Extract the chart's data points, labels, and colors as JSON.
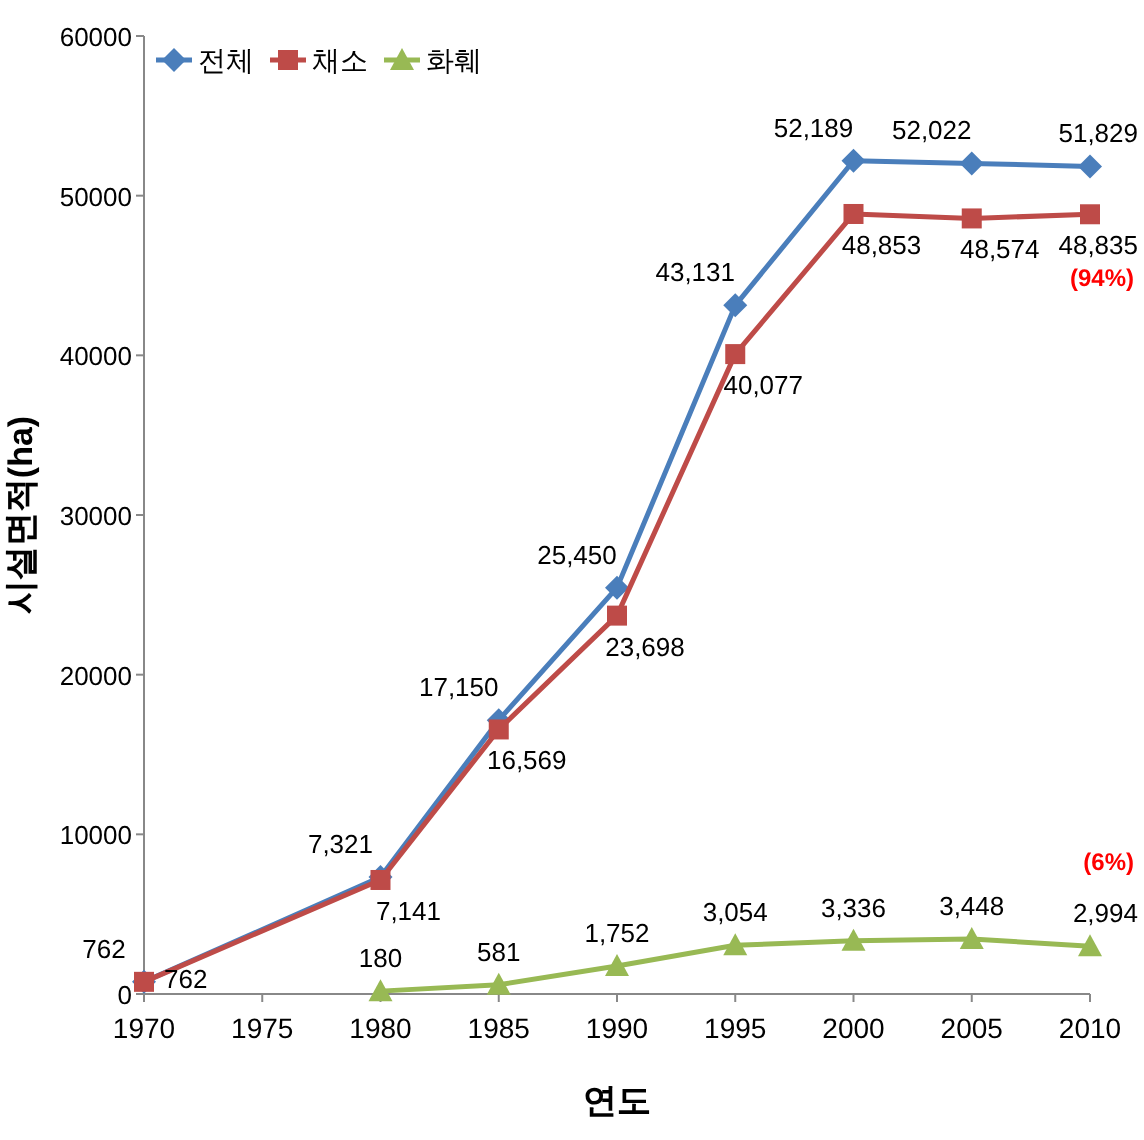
{
  "chart_data": {
    "type": "line",
    "xlabel": "연도",
    "ylabel": "시설면적(ha)",
    "x": [
      1970,
      1980,
      1985,
      1990,
      1995,
      2000,
      2005,
      2010
    ],
    "xlim": [
      1970,
      2010
    ],
    "xticks": [
      1970,
      1975,
      1980,
      1985,
      1990,
      1995,
      2000,
      2005,
      2010
    ],
    "ylim": [
      0,
      60000
    ],
    "yticks": [
      0,
      10000,
      20000,
      30000,
      40000,
      50000,
      60000
    ],
    "grid": false,
    "legend": "top left",
    "series": [
      {
        "name": "전체",
        "color": "#4a7ebb",
        "marker": "diamond",
        "values": [
          762,
          7321,
          17150,
          25450,
          43131,
          52189,
          52022,
          51829
        ],
        "value_labels": [
          "762",
          "7,321",
          "17,150",
          "25,450",
          "43,131",
          "52,189",
          "52,022",
          "51,829"
        ]
      },
      {
        "name": "채소",
        "color": "#be4b48",
        "marker": "square",
        "values": [
          762,
          7141,
          16569,
          23698,
          40077,
          48853,
          48574,
          48835
        ],
        "value_labels": [
          "762",
          "7,141",
          "16,569",
          "23,698",
          "40,077",
          "48,853",
          "48,574",
          "48,835"
        ]
      },
      {
        "name": "화훼",
        "color": "#98b954",
        "marker": "triangle",
        "values": [
          null,
          180,
          581,
          1752,
          3054,
          3336,
          3448,
          2994
        ],
        "value_labels": [
          null,
          "180",
          "581",
          "1,752",
          "3,054",
          "3,336",
          "3,448",
          "2,994"
        ]
      }
    ],
    "annotations": [
      {
        "text": "(94%)",
        "x": 2010,
        "y": 48835
      },
      {
        "text": "(6%)",
        "x": 2010,
        "y": 2994
      }
    ]
  }
}
